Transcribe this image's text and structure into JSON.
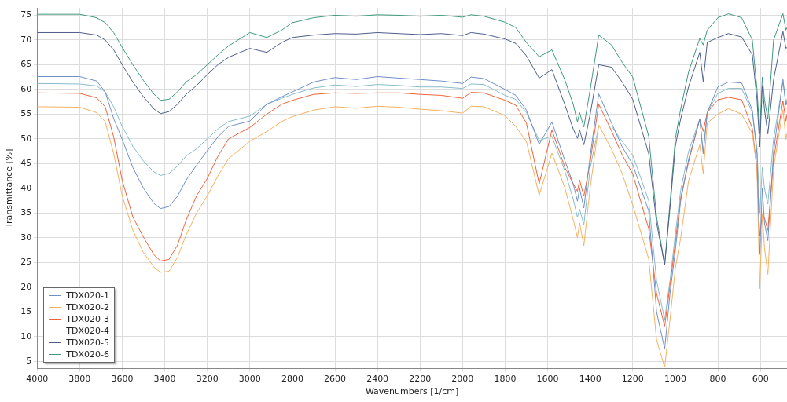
{
  "chart_data": {
    "type": "line",
    "xlabel": "Wavenumbers [1/cm]",
    "ylabel": "Transmittance [%]",
    "x": [
      4000,
      3800,
      3720,
      3680,
      3640,
      3600,
      3550,
      3500,
      3450,
      3420,
      3380,
      3340,
      3300,
      3250,
      3200,
      3150,
      3100,
      3000,
      2920,
      2850,
      2800,
      2700,
      2600,
      2500,
      2400,
      2300,
      2200,
      2100,
      2000,
      1960,
      1900,
      1800,
      1750,
      1700,
      1640,
      1580,
      1520,
      1480,
      1460,
      1450,
      1430,
      1400,
      1360,
      1300,
      1250,
      1200,
      1125,
      1088,
      1050,
      1025,
      1000,
      975,
      938,
      885,
      869,
      850,
      800,
      750,
      688,
      638,
      616,
      603,
      591,
      581,
      565,
      538,
      494,
      480,
      475
    ],
    "series": [
      {
        "name": "TDX020-1",
        "color": "#6f8fc9",
        "values": [
          62.6,
          62.6,
          61.7,
          59.5,
          54.1,
          49.9,
          44.2,
          40,
          36.9,
          35.9,
          36.3,
          38.4,
          41.6,
          44.7,
          47.6,
          50.4,
          52.5,
          53.6,
          57,
          58.5,
          59.5,
          61.5,
          62.4,
          62,
          62.6,
          62.3,
          62,
          61.7,
          61.2,
          62.5,
          62.2,
          60,
          58.8,
          55.8,
          48.9,
          53.4,
          45.7,
          40.9,
          37.4,
          40,
          36,
          46.6,
          59.1,
          53.2,
          48.4,
          44.8,
          35.4,
          15,
          7.5,
          18.7,
          27.4,
          37.4,
          45.8,
          54,
          47,
          55.3,
          60.5,
          61.5,
          61.3,
          55.8,
          47,
          26.6,
          40,
          33,
          29.4,
          47.4,
          62,
          56.8,
          57.5
        ]
      },
      {
        "name": "TDX020-2",
        "color": "#f7b060",
        "values": [
          56.5,
          56.4,
          55.3,
          53.5,
          47,
          38.5,
          31.5,
          27,
          24,
          23,
          23.2,
          26,
          30.5,
          35,
          38.5,
          42.5,
          46,
          49.5,
          51.5,
          53.5,
          54.5,
          55.8,
          56.5,
          56.2,
          56.6,
          56.4,
          56,
          55.7,
          55.2,
          56.6,
          56.5,
          54.7,
          52.5,
          49.5,
          38.6,
          47.1,
          40.2,
          33.7,
          30,
          33,
          28.4,
          40.2,
          52.8,
          47.9,
          43,
          36.6,
          25.7,
          9.3,
          3.8,
          13.4,
          23.8,
          29.9,
          41.5,
          48.8,
          43,
          53.2,
          55,
          56.1,
          55,
          51.1,
          44,
          19.7,
          34.7,
          28,
          22.6,
          44.2,
          55.9,
          49.9,
          51
        ]
      },
      {
        "name": "TDX020-3",
        "color": "#f0643c",
        "values": [
          59.3,
          59.2,
          58.3,
          56.5,
          50.4,
          41.6,
          34.2,
          30.1,
          26.5,
          25.3,
          25.6,
          28.5,
          33.5,
          38.5,
          42,
          46.5,
          50,
          52.3,
          55,
          57,
          57.8,
          59,
          59.3,
          59.2,
          59.3,
          59.3,
          59,
          58.8,
          58.2,
          59.4,
          59.3,
          57.8,
          56.8,
          53.2,
          40.9,
          51.8,
          44.3,
          40.9,
          39.4,
          41.7,
          38.4,
          45.4,
          57,
          51.6,
          46.8,
          42.9,
          31.8,
          18.7,
          12.1,
          20.3,
          29,
          38,
          45.3,
          54,
          51.5,
          55.3,
          57.9,
          58.4,
          57.9,
          52.1,
          43.8,
          30.3,
          34.7,
          34,
          31.5,
          45.8,
          57.7,
          53.6,
          55
        ]
      },
      {
        "name": "TDX020-4",
        "color": "#86bcc8",
        "values": [
          61.2,
          61.1,
          60.7,
          59.5,
          56.5,
          52.5,
          48.5,
          45.5,
          43.3,
          42.6,
          43,
          44.5,
          46.5,
          48,
          50,
          52,
          53.5,
          54.6,
          57,
          58.2,
          59,
          60.3,
          60.9,
          60.6,
          61,
          60.8,
          60.5,
          60.5,
          60.2,
          61.1,
          61,
          58.8,
          58,
          55.3,
          49.7,
          50.5,
          43.6,
          37.8,
          34.1,
          35.8,
          32.6,
          44.2,
          52.6,
          52.6,
          49.5,
          46.7,
          37.5,
          21.3,
          13.4,
          21.3,
          30.6,
          39.5,
          47.4,
          54,
          47.4,
          55.3,
          59.2,
          60.2,
          60.2,
          55.3,
          48,
          35,
          44.2,
          40,
          36.8,
          50,
          61.5,
          57,
          58
        ]
      },
      {
        "name": "TDX020-5",
        "color": "#4d5e8e",
        "values": [
          71.5,
          71.5,
          71,
          70,
          68,
          65,
          61.5,
          58.5,
          56,
          55.1,
          55.5,
          57,
          59,
          60.8,
          63,
          65,
          66.5,
          68.3,
          67.5,
          69.5,
          70.5,
          71,
          71.3,
          71.2,
          71.5,
          71.3,
          71.1,
          71.3,
          70.9,
          71.5,
          71.2,
          70.2,
          69.3,
          66.8,
          62.3,
          64,
          57,
          52,
          50.1,
          51.8,
          48.8,
          55,
          65,
          64.5,
          61.5,
          58,
          47,
          33,
          24.5,
          36,
          48.5,
          54,
          60.5,
          67.5,
          61.6,
          69.5,
          70.5,
          71.3,
          70.6,
          67,
          58,
          48.4,
          60.8,
          56,
          51,
          62,
          71.7,
          68.3,
          68.5
        ]
      },
      {
        "name": "TDX020-6",
        "color": "#3f9a7c",
        "values": [
          75.2,
          75.2,
          74.5,
          73.5,
          71.5,
          68.5,
          65,
          61.8,
          59,
          57.8,
          58,
          59.5,
          61.5,
          63,
          65,
          67,
          68.8,
          71.5,
          70.5,
          72,
          73.5,
          74.5,
          75,
          74.8,
          75.1,
          75,
          74.8,
          75,
          74.6,
          75.1,
          74.8,
          73.6,
          72.5,
          69.5,
          66.6,
          68,
          62,
          57,
          53.4,
          55.3,
          52.4,
          60,
          71,
          69,
          65.5,
          62.5,
          50.5,
          34.2,
          24.5,
          37,
          50,
          56,
          63.5,
          70.3,
          69,
          72,
          74.5,
          75.3,
          74.5,
          70,
          60,
          51,
          62.5,
          58,
          54,
          70,
          75.3,
          72,
          72.5
        ]
      }
    ],
    "xlim": [
      4000,
      475
    ],
    "xticks": [
      4000,
      3800,
      3600,
      3400,
      3200,
      3000,
      2800,
      2600,
      2400,
      2200,
      2000,
      1800,
      1600,
      1400,
      1200,
      1000,
      800,
      600
    ],
    "ylim": [
      3.5,
      76.5
    ],
    "yticks": [
      5,
      10,
      15,
      20,
      25,
      30,
      35,
      40,
      45,
      50,
      55,
      60,
      65,
      70,
      75
    ],
    "grid": true,
    "legend": "bottom left",
    "marker": "none",
    "line_style": "solid"
  }
}
